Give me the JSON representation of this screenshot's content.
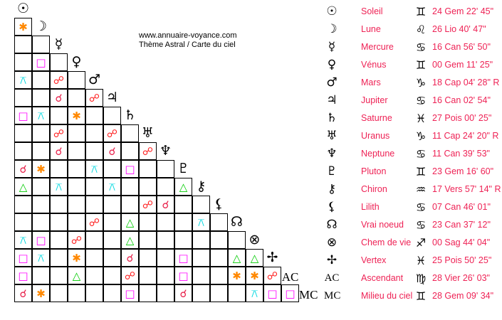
{
  "site": {
    "url": "www.annuaire-voyance.com",
    "subtitle": "Thème Astral / Carte du ciel"
  },
  "aspect_glyphs": {
    "c": "☌",
    "o": "☍",
    "t": "△",
    "s": "□",
    "x": "✱",
    "q": "⚻"
  },
  "aspect_colors": {
    "c": "#e8204a",
    "o": "#ff2020",
    "t": "#00cc00",
    "s": "#ff00ff",
    "x": "#ff8800",
    "q": "#00d8e0"
  },
  "planets": [
    {
      "icon": "sun-icon",
      "glyph": "☉",
      "name": "Soleil",
      "sign_glyph": "♊",
      "position": "24 Gem 22' 45\""
    },
    {
      "icon": "moon-icon",
      "glyph": "☽",
      "name": "Lune",
      "sign_glyph": "♌",
      "position": "26 Lio 40' 47\""
    },
    {
      "icon": "mercury-icon",
      "glyph": "☿",
      "name": "Mercure",
      "sign_glyph": "♋",
      "position": "16 Can 56' 50\""
    },
    {
      "icon": "venus-icon",
      "glyph": "♀",
      "name": "Vénus",
      "sign_glyph": "♊",
      "position": "00 Gem 11' 25\""
    },
    {
      "icon": "mars-icon",
      "glyph": "♂",
      "name": "Mars",
      "sign_glyph": "♑",
      "position": "18 Cap 04' 28\" R"
    },
    {
      "icon": "jupiter-icon",
      "glyph": "♃",
      "name": "Jupiter",
      "sign_glyph": "♋",
      "position": "16 Can 02' 54\""
    },
    {
      "icon": "saturn-icon",
      "glyph": "♄",
      "name": "Saturne",
      "sign_glyph": "♓",
      "position": "27 Pois 00' 25\""
    },
    {
      "icon": "uranus-icon",
      "glyph": "♅",
      "name": "Uranus",
      "sign_glyph": "♑",
      "position": "11 Cap 24' 20\" R"
    },
    {
      "icon": "neptune-icon",
      "glyph": "♆",
      "name": "Neptune",
      "sign_glyph": "♋",
      "position": "11 Can 39' 53\""
    },
    {
      "icon": "pluto-icon",
      "glyph": "♇",
      "name": "Pluton",
      "sign_glyph": "♊",
      "position": "23 Gem 16' 60\""
    },
    {
      "icon": "chiron-icon",
      "glyph": "⚷",
      "name": "Chiron",
      "sign_glyph": "♒",
      "position": "17 Vers 57' 14\" R"
    },
    {
      "icon": "lilith-icon",
      "glyph": "⚸",
      "name": "Lilith",
      "sign_glyph": "♋",
      "position": "07 Can 46' 01\""
    },
    {
      "icon": "north-node-icon",
      "glyph": "☊",
      "name": "Vrai noeud",
      "sign_glyph": "♋",
      "position": "23 Can 37' 12\""
    },
    {
      "icon": "part-of-fortune-icon",
      "glyph": "⊗",
      "name": "Chem de vie",
      "sign_glyph": "♐",
      "position": "00 Sag 44' 04\""
    },
    {
      "icon": "vertex-icon",
      "glyph": "✢",
      "name": "Vertex",
      "sign_glyph": "♓",
      "position": "25 Pois 50' 25\""
    },
    {
      "icon": "ascendant-icon",
      "glyph": "AC",
      "name": "Ascendant",
      "sign_glyph": "♍",
      "position": "28 Vier 26' 03\""
    },
    {
      "icon": "midheaven-icon",
      "glyph": "MC",
      "name": "Milieu du ciel",
      "sign_glyph": "♊",
      "position": "28 Gem 09' 34\""
    }
  ],
  "aspect_grid": [
    [
      "x"
    ],
    [
      "",
      ""
    ],
    [
      "",
      "s",
      ""
    ],
    [
      "q",
      "",
      "o",
      ""
    ],
    [
      "",
      "",
      "c",
      "",
      "o"
    ],
    [
      "s",
      "q",
      "",
      "x",
      "",
      ""
    ],
    [
      "",
      "",
      "o",
      "",
      "",
      "o",
      ""
    ],
    [
      "",
      "",
      "c",
      "",
      "",
      "c",
      "",
      "o"
    ],
    [
      "c",
      "x",
      "",
      "",
      "q",
      "",
      "s",
      "",
      ""
    ],
    [
      "t",
      "",
      "q",
      "",
      "",
      "q",
      "",
      "",
      "",
      "t"
    ],
    [
      "",
      "",
      "",
      "",
      "",
      "",
      "",
      "o",
      "c",
      "",
      ""
    ],
    [
      "",
      "",
      "",
      "",
      "o",
      "",
      "t",
      "",
      "",
      "",
      "q",
      ""
    ],
    [
      "q",
      "s",
      "",
      "o",
      "",
      "",
      "t",
      "",
      "",
      "",
      "",
      "",
      ""
    ],
    [
      "s",
      "q",
      "",
      "x",
      "",
      "",
      "c",
      "",
      "",
      "s",
      "",
      "",
      "t",
      "t"
    ],
    [
      "s",
      "",
      "",
      "t",
      "",
      "",
      "o",
      "",
      "",
      "s",
      "",
      "",
      "x",
      "x",
      "o"
    ],
    [
      "c",
      "x",
      "",
      "",
      "",
      "",
      "s",
      "",
      "",
      "c",
      "",
      "",
      "",
      "q",
      "s",
      "s"
    ]
  ]
}
